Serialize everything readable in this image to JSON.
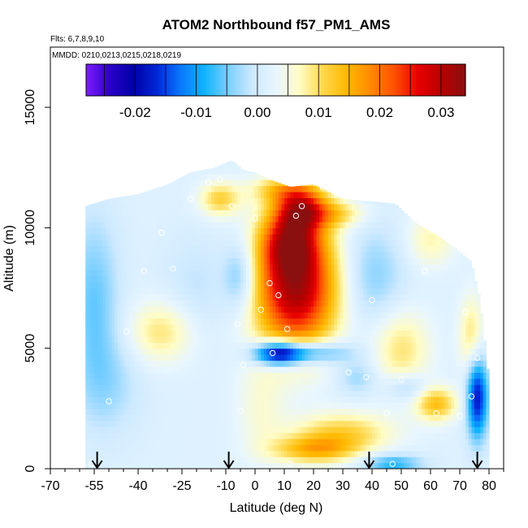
{
  "chart_data": {
    "type": "heatmap",
    "title": "ATOM2 Northbound f57_PM1_AMS",
    "flights_text": "Flts: 6,7,8,9,10",
    "dates_text": "MMDD: 0210,0213,0215,0218,0219",
    "xlabel": "Latitude (deg N)",
    "ylabel": "Altitude (m)",
    "xlim": [
      -70,
      85
    ],
    "ylim": [
      0,
      17500
    ],
    "x_ticks": [
      "-70",
      "-55",
      "-40",
      "-25",
      "-10",
      "0",
      "10",
      "20",
      "30",
      "40",
      "50",
      "60",
      "70",
      "80"
    ],
    "x_tick_values": [
      -70,
      -55,
      -40,
      -25,
      -10,
      0,
      10,
      20,
      30,
      40,
      50,
      60,
      70,
      80
    ],
    "y_ticks": [
      "0",
      "5000",
      "10000",
      "15000"
    ],
    "y_tick_values": [
      0,
      5000,
      10000,
      15000
    ],
    "colorbar": {
      "range": [
        -0.028,
        0.034
      ],
      "ticks": [
        "-0.02",
        "-0.01",
        "0.00",
        "0.01",
        "0.02",
        "0.03"
      ],
      "tick_values": [
        -0.02,
        -0.01,
        0.0,
        0.01,
        0.02,
        0.03
      ],
      "colors": [
        "#7f1cff",
        "#2a00c8",
        "#0000a8",
        "#0028d8",
        "#0a78ff",
        "#10b4ff",
        "#7ccfff",
        "#cde9ff",
        "#e8f6ff",
        "#fffcc4",
        "#ffd84c",
        "#ffb800",
        "#ff8a00",
        "#ff5000",
        "#e80000",
        "#b80000",
        "#8a1010"
      ]
    },
    "arrows_latitude": [
      -54,
      -9,
      39,
      76
    ],
    "profiles": [
      {
        "lat": -58,
        "ylo": 0,
        "yhi": 10900
      },
      {
        "lat": -50,
        "ylo": 0,
        "yhi": 11200
      },
      {
        "lat": -40,
        "ylo": 0,
        "yhi": 11400
      },
      {
        "lat": -30,
        "ylo": 0,
        "yhi": 11800
      },
      {
        "lat": -22,
        "ylo": 0,
        "yhi": 12300
      },
      {
        "lat": -14,
        "ylo": 0,
        "yhi": 12500
      },
      {
        "lat": -8,
        "ylo": 0,
        "yhi": 12800
      },
      {
        "lat": -4,
        "ylo": 0,
        "yhi": 12400
      },
      {
        "lat": 0,
        "ylo": 0,
        "yhi": 12300
      },
      {
        "lat": 5,
        "ylo": 0,
        "yhi": 12000
      },
      {
        "lat": 12,
        "ylo": 0,
        "yhi": 11700
      },
      {
        "lat": 20,
        "ylo": 0,
        "yhi": 11800
      },
      {
        "lat": 30,
        "ylo": 0,
        "yhi": 11200
      },
      {
        "lat": 40,
        "ylo": 0,
        "yhi": 11100
      },
      {
        "lat": 48,
        "ylo": 0,
        "yhi": 11000
      },
      {
        "lat": 55,
        "ylo": 0,
        "yhi": 10200
      },
      {
        "lat": 62,
        "ylo": 0,
        "yhi": 9700
      },
      {
        "lat": 68,
        "ylo": 0,
        "yhi": 9200
      },
      {
        "lat": 74,
        "ylo": 0,
        "yhi": 8600
      },
      {
        "lat": 77,
        "ylo": 0,
        "yhi": 7000
      },
      {
        "lat": 79,
        "ylo": 0,
        "yhi": 4800
      },
      {
        "lat": 80,
        "ylo": 0,
        "yhi": 3500
      }
    ],
    "features": [
      {
        "lat": 14,
        "alt": 7500,
        "sx": 10,
        "sy": 1800,
        "v": 0.03
      },
      {
        "lat": 12,
        "alt": 9500,
        "sx": 7,
        "sy": 900,
        "v": 0.018
      },
      {
        "lat": 16,
        "alt": 10800,
        "sx": 6,
        "sy": 600,
        "v": 0.02
      },
      {
        "lat": 10,
        "alt": 11600,
        "sx": 8,
        "sy": 400,
        "v": 0.01
      },
      {
        "lat": 28,
        "alt": 10600,
        "sx": 7,
        "sy": 400,
        "v": 0.008
      },
      {
        "lat": 8,
        "alt": 4800,
        "sx": 6,
        "sy": 350,
        "v": -0.024
      },
      {
        "lat": 20,
        "alt": 4850,
        "sx": 9,
        "sy": 350,
        "v": -0.012
      },
      {
        "lat": -32,
        "alt": 5700,
        "sx": 8,
        "sy": 900,
        "v": 0.008
      },
      {
        "lat": 50,
        "alt": 5000,
        "sx": 7,
        "sy": 1200,
        "v": 0.008
      },
      {
        "lat": 52,
        "alt": 3400,
        "sx": 5,
        "sy": 400,
        "v": -0.006
      },
      {
        "lat": 62,
        "alt": 2700,
        "sx": 5,
        "sy": 500,
        "v": 0.012
      },
      {
        "lat": 76,
        "alt": 3000,
        "sx": 2.5,
        "sy": 1200,
        "v": -0.02
      },
      {
        "lat": 74,
        "alt": 5500,
        "sx": 3,
        "sy": 1200,
        "v": 0.008
      },
      {
        "lat": 30,
        "alt": 1500,
        "sx": 12,
        "sy": 600,
        "v": 0.01
      },
      {
        "lat": 20,
        "alt": 800,
        "sx": 10,
        "sy": 400,
        "v": 0.012
      },
      {
        "lat": 47,
        "alt": 200,
        "sx": 7,
        "sy": 300,
        "v": -0.01
      },
      {
        "lat": -5,
        "alt": 8000,
        "sx": 4,
        "sy": 1000,
        "v": -0.008
      },
      {
        "lat": -55,
        "alt": 7000,
        "sx": 6,
        "sy": 2500,
        "v": -0.007
      },
      {
        "lat": -50,
        "alt": 3500,
        "sx": 8,
        "sy": 1500,
        "v": -0.004
      },
      {
        "lat": -12,
        "alt": 11200,
        "sx": 5,
        "sy": 500,
        "v": 0.01
      },
      {
        "lat": 40,
        "alt": 8000,
        "sx": 8,
        "sy": 1500,
        "v": -0.006
      },
      {
        "lat": -20,
        "alt": 7500,
        "sx": 8,
        "sy": 1500,
        "v": -0.003
      },
      {
        "lat": 60,
        "alt": 9500,
        "sx": 6,
        "sy": 800,
        "v": 0.006
      },
      {
        "lat": 35,
        "alt": 3800,
        "sx": 5,
        "sy": 500,
        "v": -0.005
      },
      {
        "lat": 2,
        "alt": 2500,
        "sx": 6,
        "sy": 1500,
        "v": 0.004
      }
    ],
    "samples": [
      {
        "lat": -56,
        "alt": 200
      },
      {
        "lat": -50,
        "alt": 2800
      },
      {
        "lat": -44,
        "alt": 5700
      },
      {
        "lat": -38,
        "alt": 8200
      },
      {
        "lat": -32,
        "alt": 9800
      },
      {
        "lat": -22,
        "alt": 11200
      },
      {
        "lat": -16,
        "alt": 11900
      },
      {
        "lat": -12,
        "alt": 12000
      },
      {
        "lat": -8,
        "alt": 10900
      },
      {
        "lat": -6,
        "alt": 6000
      },
      {
        "lat": -4,
        "alt": 4300
      },
      {
        "lat": 0,
        "alt": 10400
      },
      {
        "lat": 2,
        "alt": 6600
      },
      {
        "lat": 5,
        "alt": 7700
      },
      {
        "lat": 8,
        "alt": 7200
      },
      {
        "lat": 11,
        "alt": 5800
      },
      {
        "lat": 6,
        "alt": 4800
      },
      {
        "lat": 12,
        "alt": 200
      },
      {
        "lat": 14,
        "alt": 10500
      },
      {
        "lat": 16,
        "alt": 10900
      },
      {
        "lat": 23,
        "alt": 11700
      },
      {
        "lat": 30,
        "alt": 11600
      },
      {
        "lat": 32,
        "alt": 4000
      },
      {
        "lat": 38,
        "alt": 3800
      },
      {
        "lat": 40,
        "alt": 7000
      },
      {
        "lat": 45,
        "alt": 2300
      },
      {
        "lat": 47,
        "alt": 200
      },
      {
        "lat": 50,
        "alt": 3700
      },
      {
        "lat": 58,
        "alt": 8200
      },
      {
        "lat": 62,
        "alt": 2300
      },
      {
        "lat": 70,
        "alt": 2200
      },
      {
        "lat": 72,
        "alt": 6500
      },
      {
        "lat": 74,
        "alt": 3000
      },
      {
        "lat": 76,
        "alt": 4600
      },
      {
        "lat": 78,
        "alt": 7000
      },
      {
        "lat": -60,
        "alt": 10600
      },
      {
        "lat": -28,
        "alt": 8300
      },
      {
        "lat": -5,
        "alt": 2400
      }
    ]
  }
}
